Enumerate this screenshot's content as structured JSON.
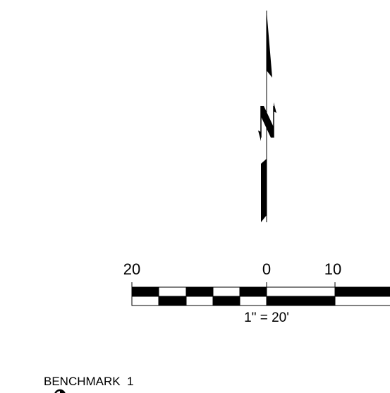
{
  "scale_bar": {
    "labels": [
      "20",
      "0",
      "10"
    ],
    "caption": "1\" = 20'"
  },
  "benchmark": {
    "label": "BENCHMARK  1"
  }
}
